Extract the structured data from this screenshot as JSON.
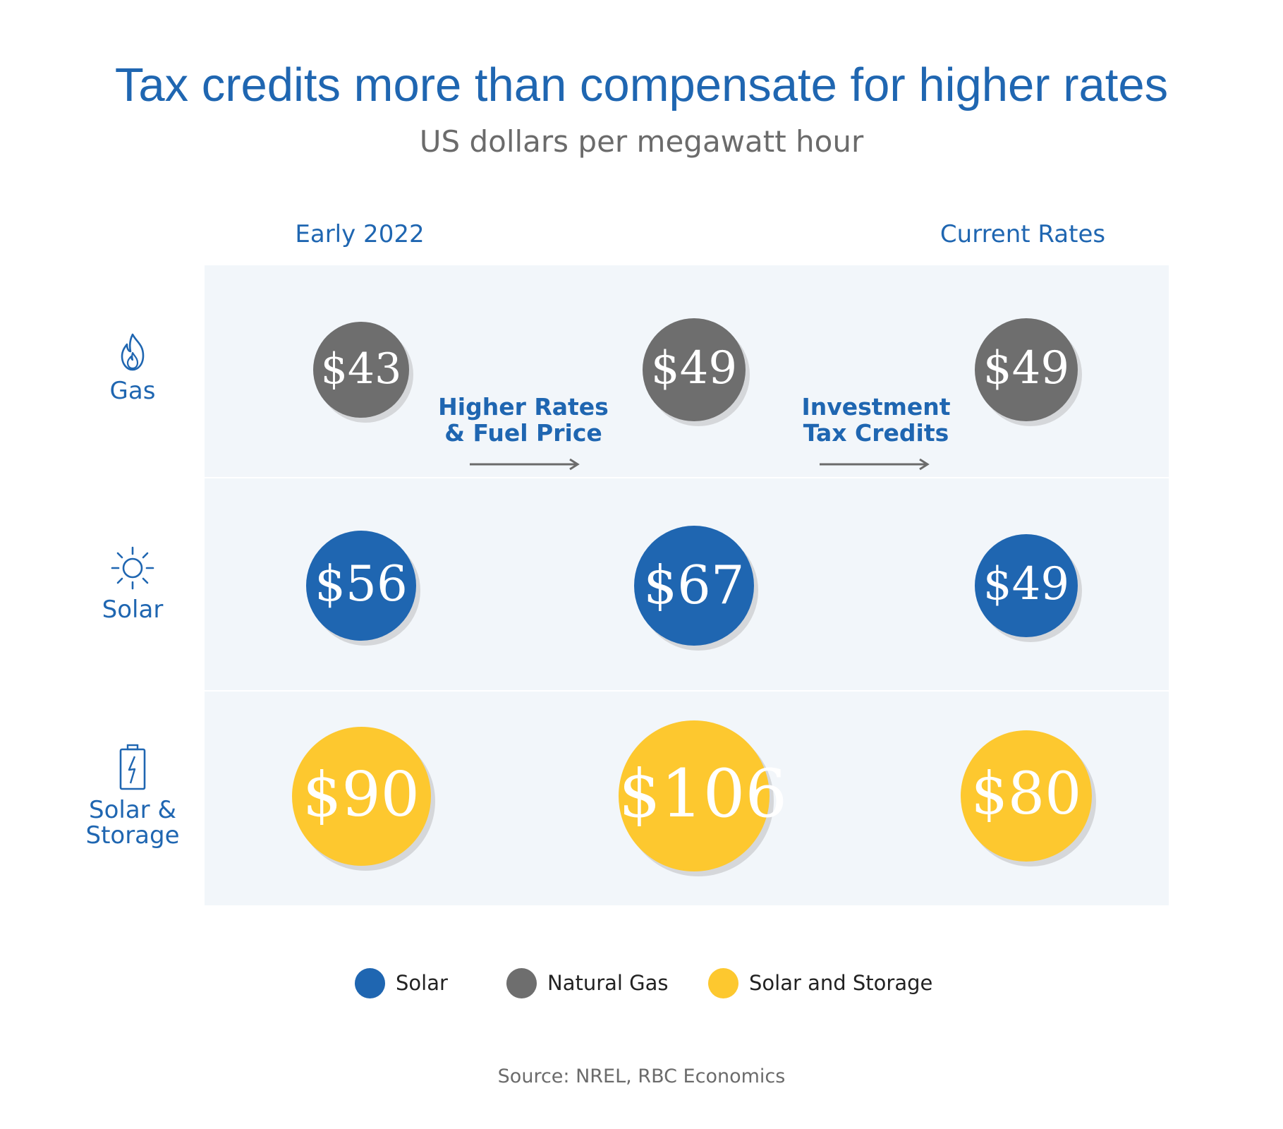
{
  "title": "Tax credits more than compensate for higher rates",
  "subtitle": "US dollars per megawatt hour",
  "column_headers": {
    "early": "Early 2022",
    "current": "Current Rates"
  },
  "transitions": [
    {
      "label": "Higher Rates\n& Fuel Price"
    },
    {
      "label": "Investment\nTax Credits"
    }
  ],
  "rows": [
    {
      "label": "Gas",
      "icon": "flame-icon"
    },
    {
      "label": "Solar",
      "icon": "sun-icon"
    },
    {
      "label": "Solar &\nStorage",
      "icon": "battery-icon"
    }
  ],
  "legend": [
    {
      "name": "Solar",
      "color": "#1f66b1"
    },
    {
      "name": "Natural Gas",
      "color": "#6e6e6e"
    },
    {
      "name": "Solar and Storage",
      "color": "#fdc82f"
    }
  ],
  "source": "Source: NREL, RBC Economics",
  "chart_data": {
    "type": "bubble",
    "unit": "US dollars per megawatt hour",
    "stages": [
      "Early 2022",
      "",
      "Current Rates"
    ],
    "series": [
      {
        "name": "Natural Gas",
        "color": "#6e6e6e",
        "values": [
          43,
          49,
          49
        ],
        "labels": [
          "$43",
          "$49",
          "$49"
        ]
      },
      {
        "name": "Solar",
        "color": "#1f66b1",
        "values": [
          56,
          67,
          49
        ],
        "labels": [
          "$56",
          "$67",
          "$49"
        ]
      },
      {
        "name": "Solar and Storage",
        "color": "#fdc82f",
        "values": [
          90,
          106,
          80
        ],
        "labels": [
          "$90",
          "$106",
          "$80"
        ]
      }
    ]
  }
}
